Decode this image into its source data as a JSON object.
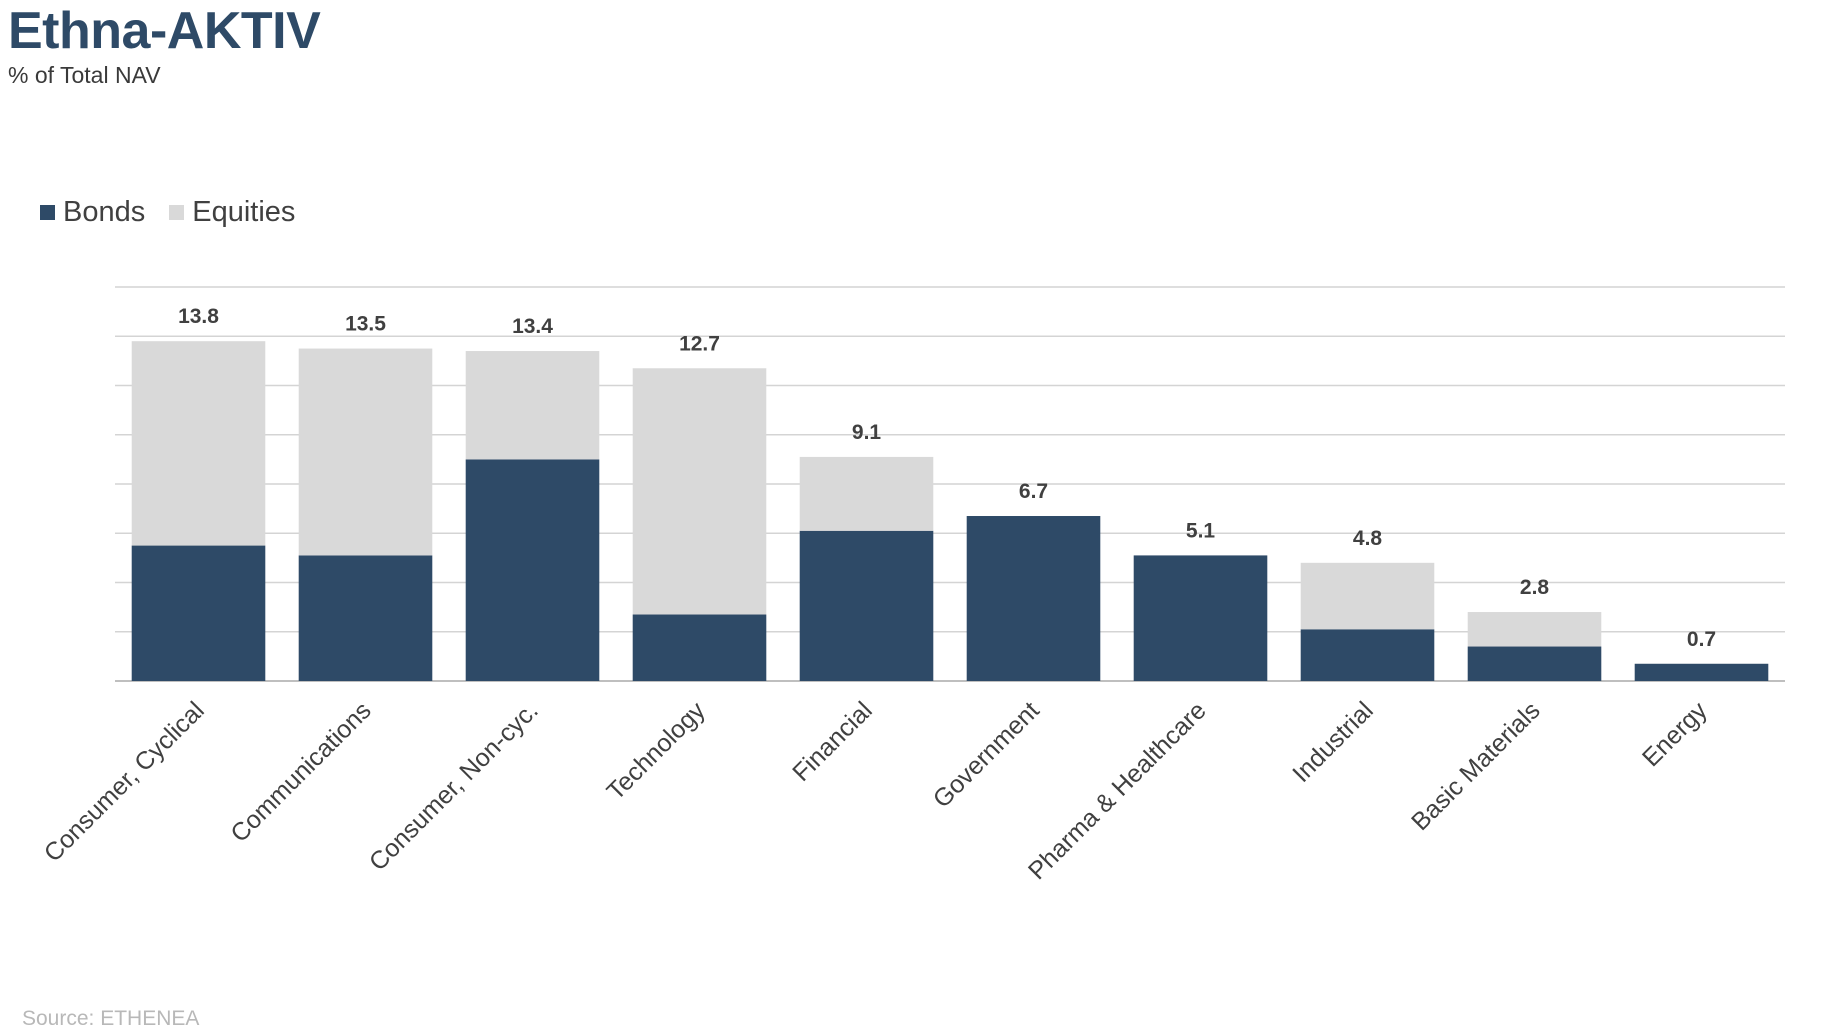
{
  "chart_data": {
    "type": "bar",
    "stacked": true,
    "title": "Ethna-AKTIV",
    "subtitle": "% of Total NAV",
    "categories": [
      "Consumer, Cyclical",
      "Communications",
      "Consumer, Non-cyc.",
      "Technology",
      "Financial",
      "Government",
      "Pharma & Healthcare",
      "Industrial",
      "Basic Materials",
      "Energy"
    ],
    "series": [
      {
        "name": "Bonds",
        "color": "#2e4a67",
        "values": [
          5.5,
          5.1,
          9.0,
          2.7,
          6.1,
          6.7,
          5.1,
          2.1,
          1.4,
          0.7
        ]
      },
      {
        "name": "Equities",
        "color": "#d9d9d9",
        "values": [
          8.3,
          8.4,
          4.4,
          10.0,
          3.0,
          0.0,
          0.0,
          2.7,
          1.4,
          0.0
        ]
      }
    ],
    "totals": [
      "13.8",
      "13.5",
      "13.4",
      "12.7",
      "9.1",
      "6.7",
      "5.1",
      "4.8",
      "2.8",
      "0.7"
    ],
    "ylim": [
      0,
      16
    ],
    "grid": true,
    "legend_position": "top-left",
    "source": "Source: ETHENEA"
  }
}
